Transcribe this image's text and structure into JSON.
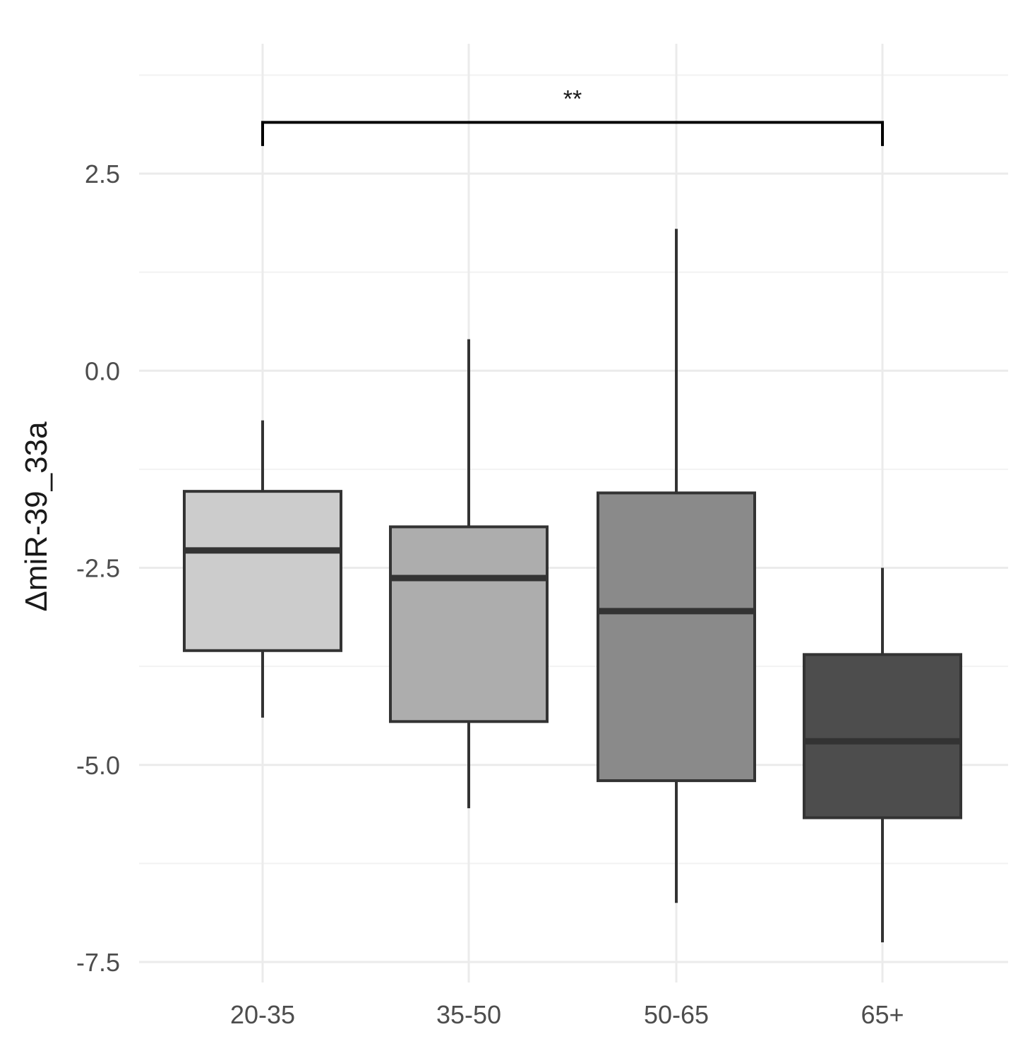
{
  "chart_data": {
    "type": "boxplot",
    "title": "",
    "xlabel": "",
    "ylabel": "ΔmiR-39_33a",
    "ylim": [
      -7.6,
      3.9
    ],
    "y_ticks": [
      2.5,
      0.0,
      -2.5,
      -5.0,
      -7.5
    ],
    "y_tick_labels": [
      "2.5",
      "0.0",
      "-2.5",
      "-5.0",
      "-7.5"
    ],
    "y_minor_ticks": [
      3.75,
      1.25,
      -1.25,
      -3.75,
      -6.25
    ],
    "grid": true,
    "legend": "none",
    "categories": [
      "20-35",
      "35-50",
      "50-65",
      "65+"
    ],
    "boxes": [
      {
        "category": "20-35",
        "lower_whisker": -4.4,
        "q1": -3.55,
        "median": -2.28,
        "q3": -1.53,
        "upper_whisker": -0.63,
        "fill": "#cccccc"
      },
      {
        "category": "35-50",
        "lower_whisker": -5.55,
        "q1": -4.45,
        "median": -2.63,
        "q3": -1.98,
        "upper_whisker": 0.4,
        "fill": "#adadad"
      },
      {
        "category": "50-65",
        "lower_whisker": -6.75,
        "q1": -5.2,
        "median": -3.05,
        "q3": -1.55,
        "upper_whisker": 1.8,
        "fill": "#8a8a8a"
      },
      {
        "category": "65+",
        "lower_whisker": -7.25,
        "q1": -5.67,
        "median": -4.7,
        "q3": -3.6,
        "upper_whisker": -2.5,
        "fill": "#4d4d4d"
      }
    ],
    "annotations": [
      {
        "type": "significance-bracket",
        "from": "20-35",
        "to": "65+",
        "label": "**",
        "y": 3.15,
        "tip_y": 2.85
      }
    ]
  }
}
